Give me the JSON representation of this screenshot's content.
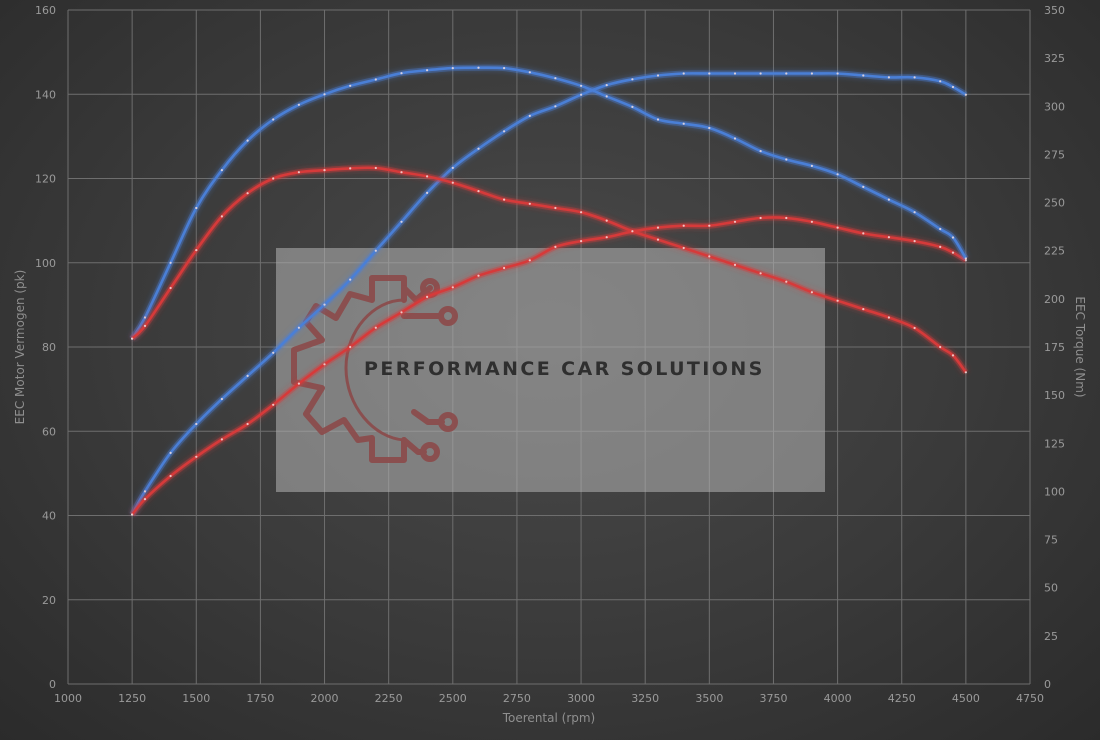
{
  "chart_data": {
    "type": "line",
    "xlabel": "Toerental (rpm)",
    "ylabel_left": "EEC Motor Vermogen (pk)",
    "ylabel_right": "EEC Torque (Nm)",
    "xlim": [
      1000,
      4750
    ],
    "ylim_left": [
      0,
      160
    ],
    "ylim_right": [
      0,
      350
    ],
    "x_ticks": [
      1000,
      1250,
      1500,
      1750,
      2000,
      2250,
      2500,
      2750,
      3000,
      3250,
      3500,
      3750,
      4000,
      4250,
      4500,
      4750
    ],
    "y_ticks_left": [
      0,
      20,
      40,
      60,
      80,
      100,
      120,
      140,
      160
    ],
    "y_ticks_right": [
      0,
      25,
      50,
      75,
      100,
      125,
      150,
      175,
      200,
      225,
      250,
      275,
      300,
      325,
      350
    ],
    "grid": true,
    "watermark": "PERFORMANCE CAR SOLUTIONS",
    "series": [
      {
        "key": "torque-tuned",
        "axis": "right",
        "color": "#4a7fd6",
        "x": [
          1250,
          1300,
          1400,
          1500,
          1600,
          1700,
          1800,
          1900,
          2000,
          2100,
          2200,
          2300,
          2400,
          2500,
          2600,
          2700,
          2800,
          2900,
          3000,
          3100,
          3200,
          3300,
          3400,
          3500,
          3600,
          3700,
          3800,
          3900,
          4000,
          4100,
          4200,
          4300,
          4400,
          4450,
          4500
        ],
        "y": [
          88,
          100,
          120,
          135,
          148,
          160,
          172,
          185,
          197,
          210,
          225,
          240,
          255,
          268,
          278,
          287,
          295,
          300,
          306,
          311,
          314,
          316,
          317,
          317,
          317,
          317,
          317,
          317,
          317,
          316,
          315,
          315,
          313,
          310,
          306
        ]
      },
      {
        "key": "torque-stock",
        "axis": "right",
        "color": "#d63a3a",
        "x": [
          1250,
          1300,
          1400,
          1500,
          1600,
          1700,
          1800,
          1900,
          2000,
          2100,
          2200,
          2300,
          2400,
          2500,
          2600,
          2700,
          2800,
          2900,
          3000,
          3100,
          3200,
          3300,
          3400,
          3500,
          3600,
          3700,
          3800,
          3900,
          4000,
          4100,
          4200,
          4300,
          4400,
          4450,
          4500
        ],
        "y": [
          88,
          96,
          108,
          118,
          127,
          135,
          145,
          156,
          166,
          175,
          185,
          193,
          201,
          206,
          212,
          216,
          220,
          227,
          230,
          232,
          235,
          237,
          238,
          238,
          240,
          242,
          242,
          240,
          237,
          234,
          232,
          230,
          227,
          224,
          220
        ]
      },
      {
        "key": "power-tuned",
        "axis": "left",
        "color": "#4a7fd6",
        "x": [
          1250,
          1300,
          1400,
          1500,
          1600,
          1700,
          1800,
          1900,
          2000,
          2100,
          2200,
          2300,
          2400,
          2500,
          2600,
          2700,
          2800,
          2900,
          3000,
          3100,
          3200,
          3300,
          3400,
          3500,
          3600,
          3700,
          3800,
          3900,
          4000,
          4100,
          4200,
          4300,
          4400,
          4450,
          4500
        ],
        "y": [
          82,
          87,
          100,
          113,
          122,
          129,
          134,
          137.5,
          140,
          142,
          143.5,
          145,
          145.7,
          146.2,
          146.3,
          146.2,
          145.2,
          143.8,
          142,
          139.5,
          137,
          134,
          133,
          132,
          129.5,
          126.5,
          124.5,
          123,
          121,
          118,
          115,
          112,
          108,
          106,
          101
        ]
      },
      {
        "key": "power-stock",
        "axis": "left",
        "color": "#d63a3a",
        "x": [
          1250,
          1300,
          1400,
          1500,
          1600,
          1700,
          1800,
          1900,
          2000,
          2100,
          2200,
          2300,
          2400,
          2500,
          2600,
          2700,
          2800,
          2900,
          3000,
          3100,
          3200,
          3300,
          3400,
          3500,
          3600,
          3700,
          3800,
          3900,
          4000,
          4100,
          4200,
          4300,
          4400,
          4450,
          4500
        ],
        "y": [
          82,
          85,
          94,
          103,
          111,
          116.5,
          120,
          121.5,
          122,
          122.4,
          122.5,
          121.5,
          120.5,
          119,
          117,
          115,
          114,
          113,
          112,
          110,
          107.5,
          105.5,
          103.5,
          101.5,
          99.5,
          97.5,
          95.5,
          93,
          91,
          89,
          87,
          84.5,
          80,
          78,
          74
        ]
      }
    ]
  }
}
